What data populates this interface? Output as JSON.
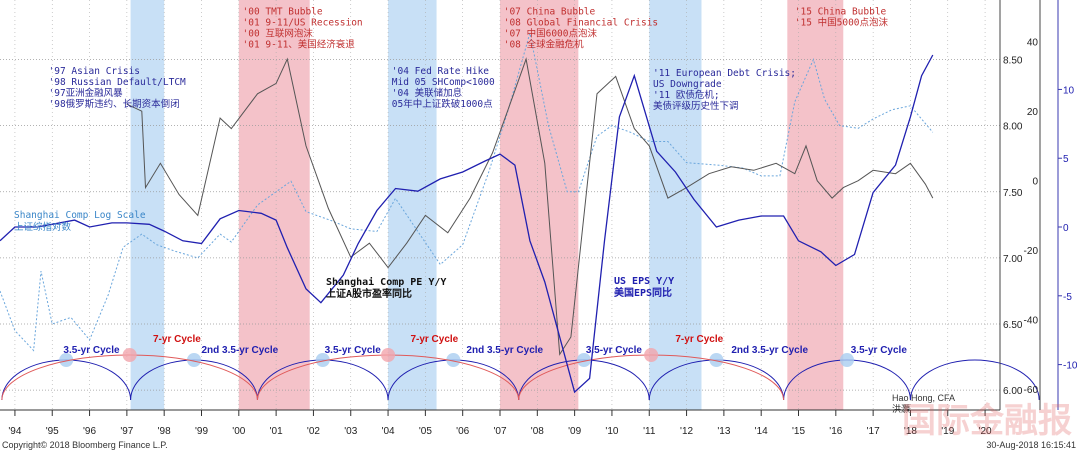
{
  "chart_data": {
    "type": "line",
    "title": "",
    "x_ticks": [
      "'94",
      "'95",
      "'96",
      "'97",
      "'98",
      "'99",
      "'00",
      "'01",
      "'02",
      "'03",
      "'04",
      "'05",
      "'06",
      "'07",
      "'08",
      "'09",
      "'10",
      "'11",
      "'12",
      "'13",
      "'14",
      "'15",
      "'16",
      "'17",
      "'18",
      "'19",
      "'20"
    ],
    "y_left": {
      "ticks": [
        "6.00",
        "6.50",
        "7.00",
        "7.50",
        "8.00",
        "8.50"
      ],
      "range": [
        6.0,
        8.75
      ]
    },
    "y_mid": {
      "ticks": [
        "-60",
        "-40",
        "-20",
        "0",
        "20",
        "40"
      ],
      "range": [
        -60,
        45
      ]
    },
    "y_right": {
      "ticks": [
        "-10",
        "-5",
        "0",
        "5",
        "10"
      ],
      "range": [
        -13,
        16
      ]
    },
    "grid": true,
    "bands": [
      {
        "kind": "blue",
        "from": 1997.1,
        "to": 1998.0
      },
      {
        "kind": "red",
        "from": 2000.0,
        "to": 2001.9
      },
      {
        "kind": "blue",
        "from": 2004.0,
        "to": 2005.3
      },
      {
        "kind": "red",
        "from": 2007.0,
        "to": 2009.1
      },
      {
        "kind": "blue",
        "from": 2011.0,
        "to": 2012.4
      },
      {
        "kind": "red",
        "from": 2014.7,
        "to": 2016.2
      }
    ],
    "annotations": [
      {
        "color": "#2b2b9a",
        "year": 1994.9,
        "y": 0.82,
        "lines": [
          "'97 Asian Crisis",
          "'98 Russian Default/LTCM",
          "'97亚洲金融风暴",
          "'98俄罗斯违约、长期资本倒闭"
        ]
      },
      {
        "color": "#c03030",
        "year": 2000.1,
        "y": 0.965,
        "lines": [
          "'00 TMT Bubble",
          "'01 9-11/US Recession",
          "'00 互联网泡沫",
          "'01 9-11、美国经济衰退"
        ]
      },
      {
        "color": "#2b2b9a",
        "year": 2004.1,
        "y": 0.82,
        "lines": [
          "'04 Fed Rate Hike",
          "Mid 05 SHComp<1000",
          "'04 美联储加息",
          "05年中上证跌破1000点"
        ]
      },
      {
        "color": "#c03030",
        "year": 2007.1,
        "y": 0.965,
        "lines": [
          "'07 China Bubble",
          "'08 Global Financial Crisis",
          "'07 中国6000点泡沫",
          "'08 全球金融危机"
        ]
      },
      {
        "color": "#2b2b9a",
        "year": 2011.1,
        "y": 0.815,
        "lines": [
          "'11 European Debt Crisis;",
          "US Downgrade",
          "'11 欧债危机;",
          "美债评级历史性下调"
        ]
      },
      {
        "color": "#c03030",
        "year": 2014.9,
        "y": 0.965,
        "lines": [
          "'15 China Bubble",
          "'15 中国5000点泡沫"
        ]
      }
    ],
    "series": [
      {
        "name": "Shanghai Comp Log Scale",
        "name_cn": "上证综指对数",
        "axis": "left",
        "color": "#6aa6dc",
        "dash": "2,2",
        "x": [
          1993.6,
          1994.0,
          1994.5,
          1994.7,
          1995.0,
          1995.5,
          1996.0,
          1996.5,
          1996.9,
          1997.4,
          1997.8,
          1998.3,
          1998.9,
          1999.5,
          1999.8,
          2000.5,
          2001.4,
          2001.8,
          2002.5,
          2003.0,
          2003.7,
          2004.2,
          2004.8,
          2005.4,
          2006.0,
          2006.7,
          2007.2,
          2007.8,
          2008.3,
          2008.8,
          2009.1,
          2009.6,
          2010.0,
          2010.5,
          2011.0,
          2011.5,
          2012.0,
          2012.9,
          2013.5,
          2014.0,
          2014.5,
          2014.9,
          2015.4,
          2015.7,
          2016.1,
          2016.6,
          2017.0,
          2017.5,
          2018.0,
          2018.6
        ],
        "y": [
          6.75,
          6.45,
          6.3,
          6.9,
          6.5,
          6.55,
          6.38,
          6.72,
          7.08,
          7.18,
          7.1,
          7.05,
          7.0,
          7.18,
          7.12,
          7.4,
          7.58,
          7.35,
          7.28,
          7.22,
          7.2,
          7.45,
          7.2,
          6.95,
          7.1,
          7.65,
          8.1,
          8.7,
          8.0,
          7.5,
          7.5,
          7.92,
          8.0,
          7.95,
          7.88,
          7.88,
          7.72,
          7.7,
          7.68,
          7.62,
          7.62,
          8.18,
          8.5,
          8.2,
          8.0,
          7.98,
          8.05,
          8.12,
          8.15,
          7.95
        ]
      },
      {
        "name": "Shanghai Comp PE Y/Y",
        "name_cn": "上证A股市盈率同比",
        "axis": "mid",
        "color": "#555555",
        "dash": "",
        "x": [
          1997.0,
          1997.4,
          1997.5,
          1997.9,
          1998.4,
          1998.9,
          1999.5,
          1999.8,
          2000.5,
          2001.0,
          2001.3,
          2001.8,
          2002.4,
          2003.0,
          2003.5,
          2004.0,
          2004.5,
          2005.0,
          2005.6,
          2006.2,
          2006.8,
          2007.2,
          2007.7,
          2008.2,
          2008.6,
          2008.9,
          2009.2,
          2009.6,
          2010.1,
          2010.6,
          2011.0,
          2011.5,
          2012.0,
          2012.6,
          2013.2,
          2013.8,
          2014.4,
          2014.9,
          2015.2,
          2015.5,
          2015.9,
          2016.2,
          2016.6,
          2017.0,
          2017.6,
          2018.0,
          2018.4,
          2018.6
        ],
        "y": [
          22,
          20,
          -2,
          5,
          -4,
          -10,
          18,
          15,
          25,
          28,
          35,
          10,
          -8,
          -22,
          -18,
          -25,
          -18,
          -10,
          -15,
          -5,
          8,
          20,
          35,
          5,
          -50,
          -45,
          -15,
          25,
          30,
          15,
          10,
          -5,
          -2,
          2,
          4,
          3,
          5,
          2,
          10,
          0,
          -5,
          -2,
          0,
          3,
          2,
          5,
          -1,
          -5
        ]
      },
      {
        "name": "US EPS Y/Y",
        "name_cn": "美国EPS同比",
        "axis": "right",
        "color": "#2020b0",
        "dash": "",
        "x": [
          1993.6,
          1994.0,
          1994.6,
          1995.0,
          1995.6,
          1996.0,
          1996.6,
          1997.0,
          1997.6,
          1998.0,
          1998.5,
          1999.0,
          1999.5,
          2000.0,
          2000.6,
          2001.0,
          2001.3,
          2001.8,
          2002.2,
          2002.8,
          2003.2,
          2003.7,
          2004.2,
          2004.8,
          2005.4,
          2006.0,
          2006.6,
          2007.0,
          2007.4,
          2007.8,
          2008.2,
          2008.6,
          2009.0,
          2009.4,
          2009.8,
          2010.2,
          2010.6,
          2011.2,
          2011.7,
          2012.2,
          2012.8,
          2013.4,
          2014.0,
          2014.6,
          2015.0,
          2015.6,
          2016.0,
          2016.5,
          2017.0,
          2017.6,
          2018.0,
          2018.3,
          2018.6
        ],
        "y": [
          -1.0,
          0.0,
          0.0,
          0.2,
          0.5,
          0.0,
          0.3,
          0.3,
          0.2,
          -0.3,
          -1.0,
          -1.2,
          0.6,
          1.2,
          1.0,
          0.5,
          -1.5,
          -4.5,
          -5.5,
          -3.5,
          -1.2,
          1.2,
          2.8,
          2.6,
          3.5,
          4.0,
          4.8,
          5.3,
          4.5,
          -1.0,
          -4.0,
          -8.0,
          -12.0,
          -11.0,
          -1.0,
          8.0,
          11.0,
          5.5,
          4.0,
          2.0,
          0.0,
          0.5,
          0.8,
          0.8,
          -1.0,
          -1.8,
          -2.8,
          -2.0,
          2.5,
          4.5,
          8.0,
          11.0,
          12.5
        ]
      }
    ],
    "cycles": {
      "anchors": [
        1993.65,
        1997.1,
        2000.5,
        2004.0,
        2007.5,
        2011.0,
        2014.6,
        2018.0
      ],
      "labels": [
        {
          "text": "3.5-yr Cycle",
          "year": 1995.3,
          "color": "#2020b0"
        },
        {
          "text": "7-yr Cycle",
          "year": 1997.7,
          "color": "#d01010"
        },
        {
          "text": "2nd 3.5-yr Cycle",
          "year": 1999.0,
          "color": "#2020b0"
        },
        {
          "text": "3.5-yr Cycle",
          "year": 2002.3,
          "color": "#2020b0"
        },
        {
          "text": "7-yr Cycle",
          "year": 2004.6,
          "color": "#d01010"
        },
        {
          "text": "2nd 3.5-yr Cycle",
          "year": 2006.1,
          "color": "#2020b0"
        },
        {
          "text": "3.5-yr Cycle",
          "year": 2009.3,
          "color": "#2020b0"
        },
        {
          "text": "7-yr Cycle",
          "year": 2011.7,
          "color": "#d01010"
        },
        {
          "text": "2nd 3.5-yr Cycle",
          "year": 2013.2,
          "color": "#2020b0"
        },
        {
          "text": "3.5-yr Cycle",
          "year": 2016.4,
          "color": "#2020b0"
        }
      ]
    }
  },
  "labels": {
    "sh_log_en": "Shanghai Comp Log Scale",
    "sh_log_cn": "上证综指对数",
    "pe_en": "Shanghai Comp PE Y/Y",
    "pe_cn": "上证A股市盈率同比",
    "eps_en": "US EPS Y/Y",
    "eps_cn": "美国EPS同比"
  },
  "footer": {
    "copyright": "Copyright© 2018 Bloomberg Finance L.P.",
    "timestamp": "30-Aug-2018 16:15:41",
    "author_en": "Hao Hong, CFA",
    "author_cn": "洪灝"
  },
  "watermark": "国际金融报"
}
